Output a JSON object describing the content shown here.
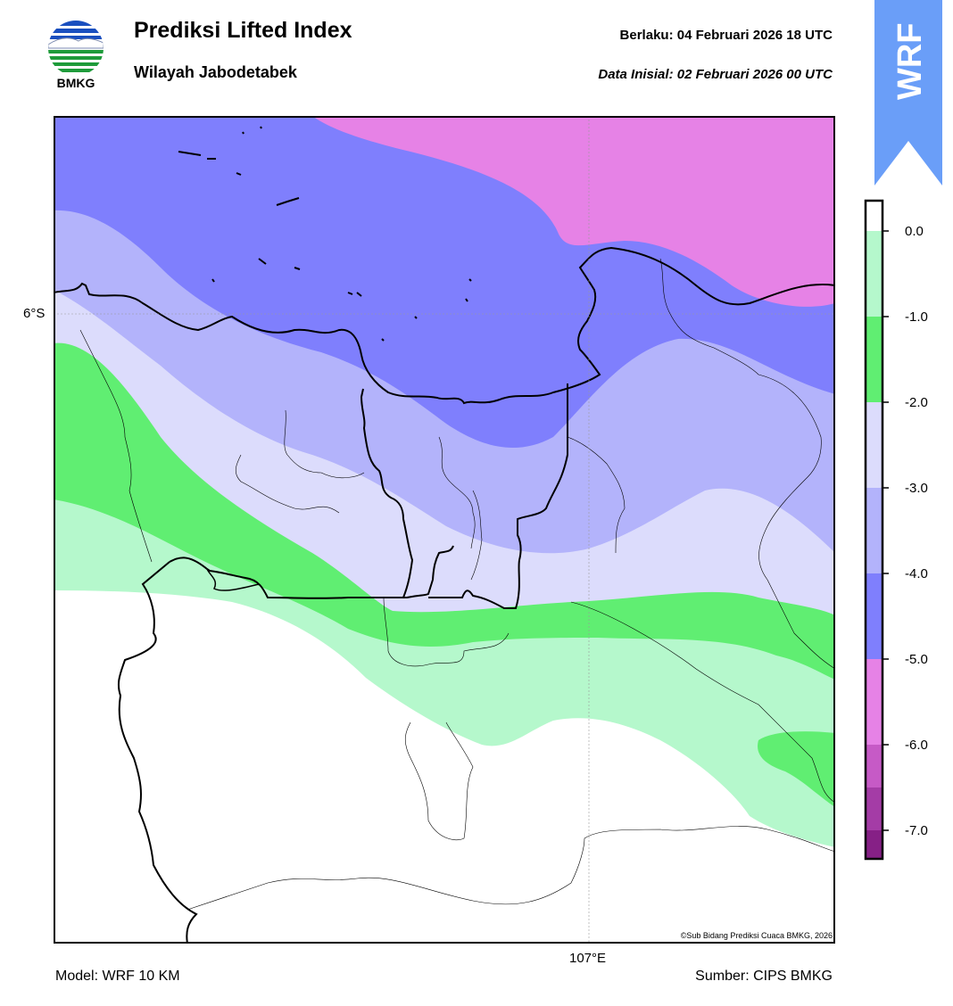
{
  "header": {
    "title": "Prediksi Lifted Index",
    "subtitle": "Wilayah Jabodetabek",
    "valid_label": "Berlaku:  04 Februari 2026 18 UTC",
    "init_label": "Data Inisial:  02 Februari 2026 00 UTC"
  },
  "logo": {
    "text": "BMKG",
    "icon": "bmkg-logo-icon"
  },
  "badge": {
    "text": "WRF",
    "color": "#6a9ef8"
  },
  "map": {
    "lat_label": "6°S",
    "lon_label": "107°E",
    "copyright": "©Sub Bidang Prediksi Cuaca BMKG, 2026"
  },
  "footer": {
    "model": "Model: WRF 10 KM",
    "source": "Sumber: CIPS BMKG"
  },
  "colorbar": {
    "ticks": [
      "0.0",
      "-1.0",
      "-2.0",
      "-3.0",
      "-4.0",
      "-5.0",
      "-6.0",
      "-7.0"
    ],
    "colors": [
      "#ffffff",
      "#b5f8cc",
      "#60ee72",
      "#dcdcfc",
      "#b3b3fb",
      "#7f7ffd",
      "#e682e6",
      "#c65ac6",
      "#a43ca6",
      "#862086"
    ]
  }
}
